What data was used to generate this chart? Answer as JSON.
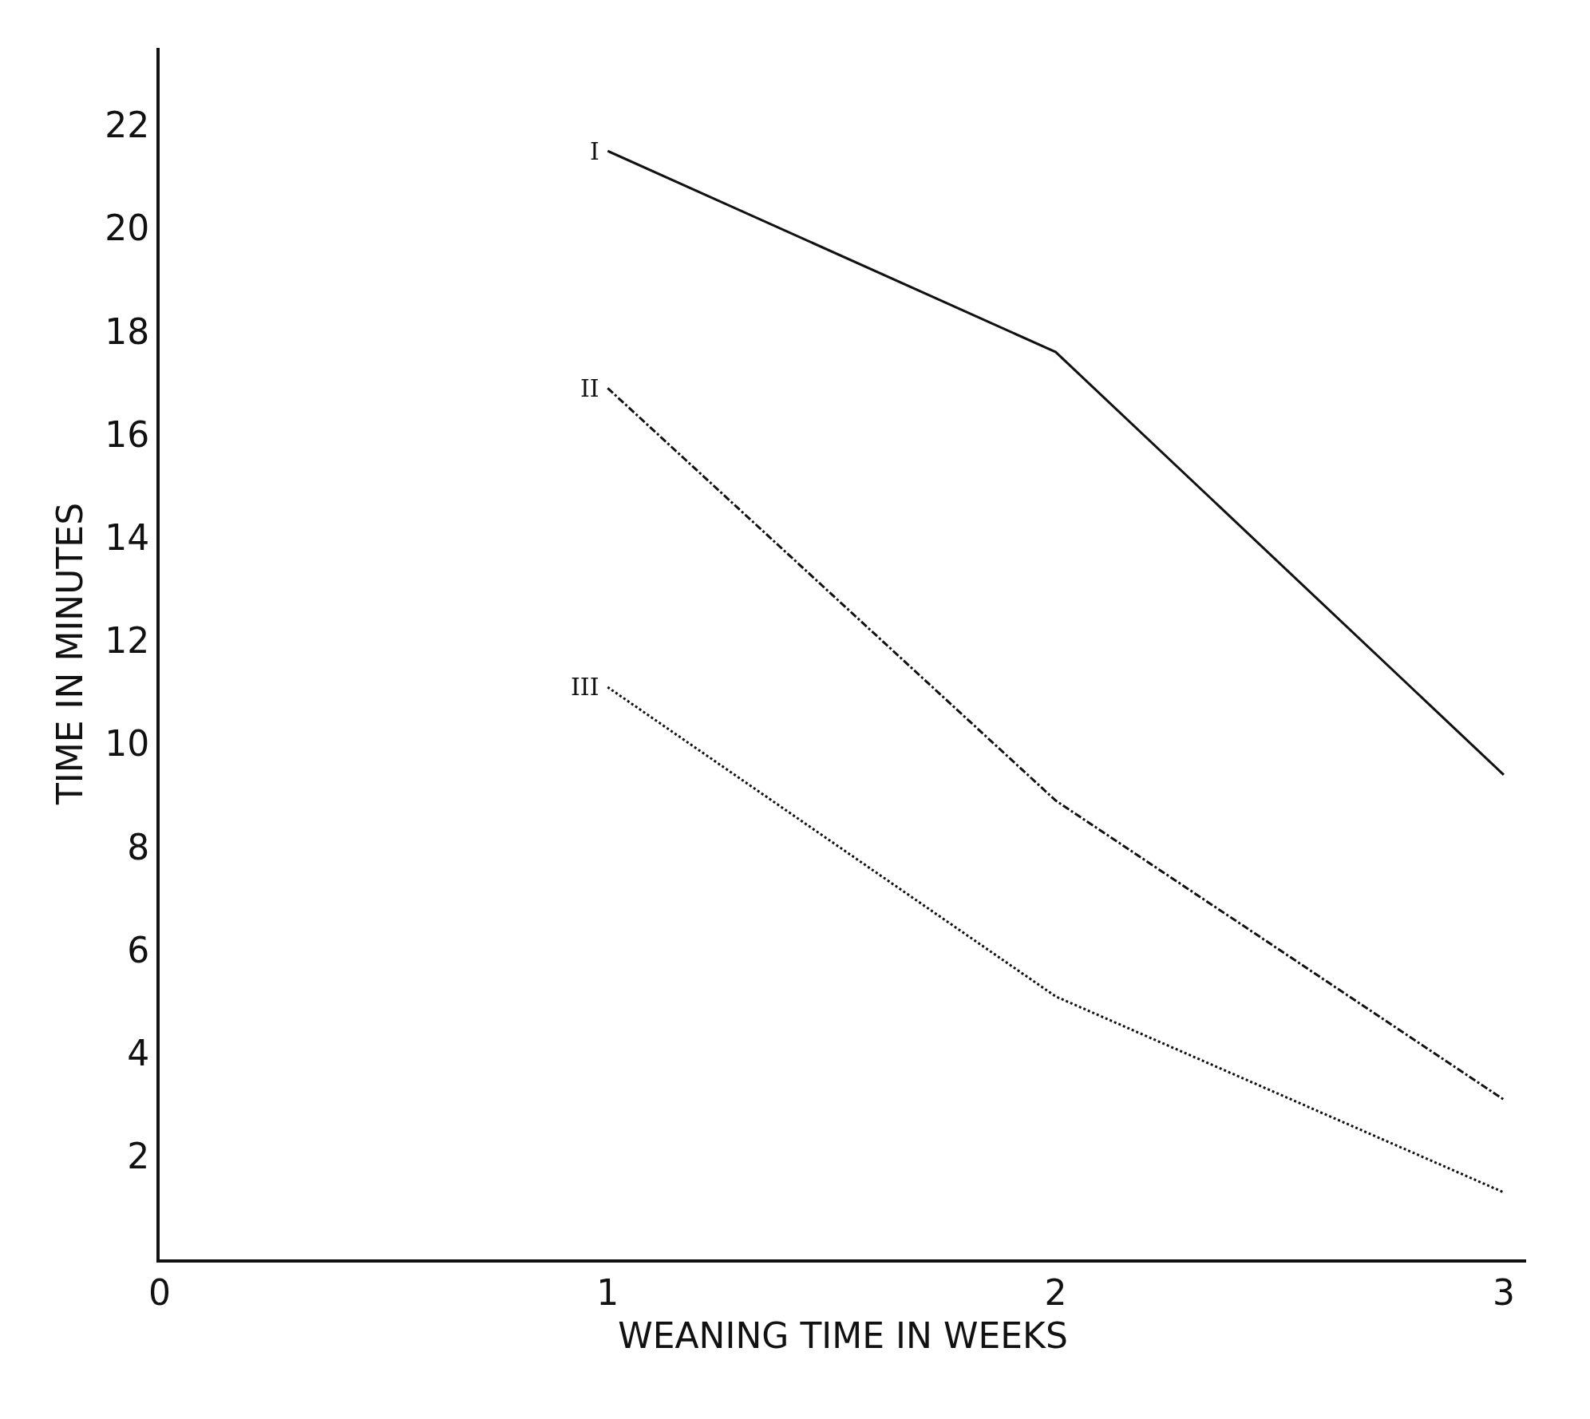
{
  "chart_data": {
    "type": "line",
    "xlabel": "WEANING TIME IN WEEKS",
    "ylabel": "TIME IN MINUTES",
    "x": [
      1,
      2,
      3
    ],
    "series": [
      {
        "name": "I",
        "color": "#111111",
        "line_style": "solid",
        "values": [
          21.5,
          17.6,
          9.4
        ]
      },
      {
        "name": "II",
        "color": "#111111",
        "line_style": "dashed",
        "values": [
          16.9,
          8.9,
          3.1
        ]
      },
      {
        "name": "III",
        "color": "#111111",
        "line_style": "dotted",
        "values": [
          11.1,
          5.1,
          1.3
        ]
      }
    ],
    "xlim": [
      0,
      3.05
    ],
    "xticks": [
      0,
      1,
      2,
      3
    ],
    "ylim": [
      0,
      23.5
    ],
    "yticks": [
      2,
      4,
      6,
      8,
      10,
      12,
      14,
      16,
      18,
      20,
      22
    ],
    "marker": "none",
    "legend": false
  }
}
